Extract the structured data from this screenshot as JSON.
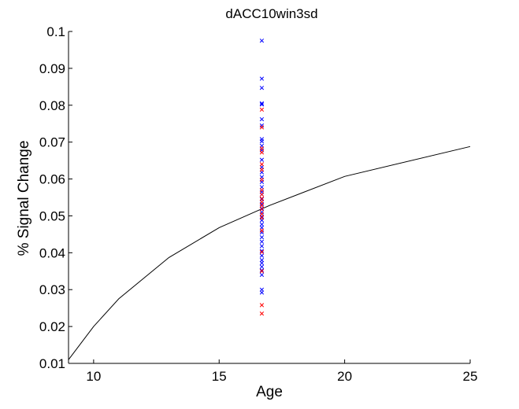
{
  "chart_data": {
    "type": "scatter",
    "title": "dACC10win3sd",
    "xlabel": "Age",
    "ylabel": "% Signal Change",
    "xlim": [
      9,
      25
    ],
    "ylim": [
      0.01,
      0.1
    ],
    "x_ticks": [
      10,
      15,
      20,
      25
    ],
    "y_ticks": [
      0.01,
      0.02,
      0.03,
      0.04,
      0.05,
      0.06,
      0.07,
      0.08,
      0.09,
      0.1
    ],
    "grid": false,
    "series": [
      {
        "kind": "line",
        "color": "#000000",
        "x": [
          9,
          10,
          11,
          13,
          15,
          17,
          20,
          25
        ],
        "y": [
          0.011,
          0.02,
          0.0275,
          0.0387,
          0.0468,
          0.0528,
          0.0607,
          0.0688
        ]
      },
      {
        "kind": "markers",
        "marker": "x",
        "color": "#0000ff",
        "x": [
          16.7,
          16.7,
          16.7,
          16.7,
          16.7,
          16.7,
          16.7,
          16.7,
          16.7,
          16.7,
          16.7,
          16.7,
          16.7,
          16.7,
          16.7,
          16.7,
          16.7,
          16.7,
          16.7,
          16.7,
          16.7,
          16.7,
          16.7,
          16.7,
          16.7,
          16.7,
          16.7,
          16.7,
          16.7,
          16.7,
          16.7,
          16.7,
          16.7,
          16.7,
          16.7,
          16.7,
          16.7,
          16.7,
          16.7,
          16.7
        ],
        "y": [
          0.0975,
          0.0872,
          0.0847,
          0.0805,
          0.0802,
          0.0762,
          0.0745,
          0.0708,
          0.0702,
          0.069,
          0.0678,
          0.0652,
          0.0632,
          0.0618,
          0.0605,
          0.0592,
          0.0578,
          0.0565,
          0.0558,
          0.0545,
          0.0532,
          0.052,
          0.051,
          0.0498,
          0.0488,
          0.0477,
          0.0468,
          0.0455,
          0.0442,
          0.043,
          0.0418,
          0.0405,
          0.0392,
          0.038,
          0.0372,
          0.0362,
          0.0352,
          0.034,
          0.03,
          0.0292
        ]
      },
      {
        "kind": "markers",
        "marker": "x",
        "color": "#ff0000",
        "x": [
          16.7,
          16.7,
          16.7,
          16.7,
          16.7,
          16.7,
          16.7,
          16.7,
          16.7,
          16.7,
          16.7,
          16.7,
          16.7,
          16.7,
          16.7,
          16.7,
          16.7,
          16.7,
          16.7,
          16.7
        ],
        "y": [
          0.0788,
          0.074,
          0.0683,
          0.0672,
          0.064,
          0.0625,
          0.0598,
          0.057,
          0.0558,
          0.0547,
          0.0538,
          0.0528,
          0.0518,
          0.0505,
          0.0495,
          0.046,
          0.0402,
          0.035,
          0.0258,
          0.0235
        ]
      }
    ]
  }
}
